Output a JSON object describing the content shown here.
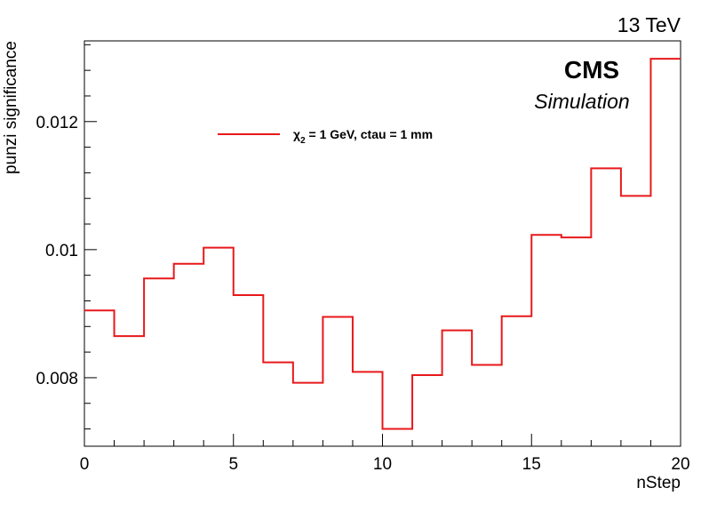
{
  "chart_data": {
    "type": "line",
    "style": "step-histogram",
    "x_bin_edges": [
      0,
      1,
      2,
      3,
      4,
      5,
      6,
      7,
      8,
      9,
      10,
      11,
      12,
      13,
      14,
      15,
      16,
      17,
      18,
      19,
      20
    ],
    "values": [
      0.00905,
      0.00865,
      0.00955,
      0.00978,
      0.01003,
      0.00929,
      0.00824,
      0.00792,
      0.00895,
      0.00809,
      0.0072,
      0.00804,
      0.00874,
      0.0082,
      0.00896,
      0.01023,
      0.01019,
      0.01127,
      0.01084,
      0.01298
    ],
    "xlim": [
      0,
      20
    ],
    "ylim": [
      0.00693,
      0.01326
    ],
    "xlabel": "nStep",
    "ylabel": "punzi significance",
    "x_ticks": [
      "0",
      "5",
      "10",
      "15",
      "20"
    ],
    "y_ticks": [
      "0.008",
      "0.01",
      "0.012"
    ],
    "series": [
      {
        "name_symbol": "χ",
        "name_subscript": "2",
        "name_rest": " = 1 GeV, ctau = 1 mm",
        "color": "#e8191b"
      }
    ],
    "legend_position": "top-left",
    "grid": false
  },
  "annotations": {
    "energy": "13 TeV",
    "experiment": "CMS",
    "status": "Simulation"
  },
  "colors": {
    "series": "#e8191b",
    "axis": "#000000"
  }
}
